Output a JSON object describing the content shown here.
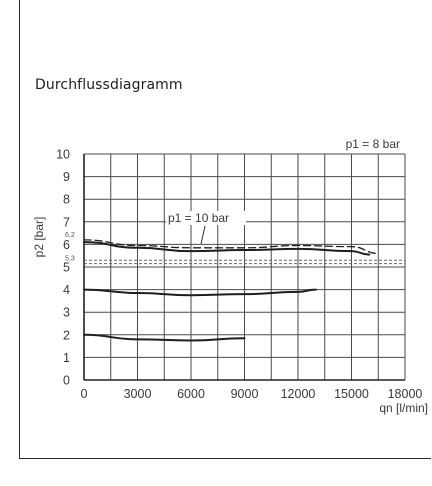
{
  "heading": "Durchflussdiagramm",
  "chart_data": {
    "type": "line",
    "xlabel": "qn [l/min]",
    "ylabel": "p2 [bar]",
    "xlim": [
      0,
      18000
    ],
    "ylim": [
      0,
      10
    ],
    "x_ticks": [
      "0",
      "3000",
      "6000",
      "9000",
      "12000",
      "15000",
      "18000"
    ],
    "y_ticks": [
      "0",
      "1",
      "2",
      "3",
      "4",
      "5",
      "6",
      "7",
      "8",
      "9",
      "10"
    ],
    "grid": true,
    "annotations": {
      "p1_8": "p1 = 8 bar",
      "p1_10": "p1 = 10 bar",
      "v62": "6,2",
      "v53": "5,3"
    },
    "series": [
      {
        "style": "solid",
        "x": [
          0,
          3000,
          6000,
          9000,
          12000,
          15000,
          16000
        ],
        "y": [
          6.1,
          5.85,
          5.7,
          5.75,
          5.8,
          5.7,
          5.55
        ]
      },
      {
        "style": "dashed",
        "x": [
          0,
          3000,
          6000,
          9000,
          12000,
          15000,
          16500
        ],
        "y": [
          6.2,
          5.95,
          5.85,
          5.85,
          5.95,
          5.9,
          5.6
        ]
      },
      {
        "style": "solid",
        "x": [
          0,
          3000,
          6000,
          9000,
          12000,
          13000
        ],
        "y": [
          4.0,
          3.85,
          3.75,
          3.8,
          3.9,
          4.0
        ]
      },
      {
        "style": "solid",
        "x": [
          0,
          3000,
          6000,
          9000
        ],
        "y": [
          2.0,
          1.8,
          1.75,
          1.85
        ]
      }
    ],
    "reference_lines": [
      {
        "style": "dashed",
        "y": 5.3,
        "x": [
          0,
          18000
        ]
      },
      {
        "style": "dashed",
        "y": 5.15,
        "x": [
          0,
          18000
        ]
      }
    ]
  }
}
